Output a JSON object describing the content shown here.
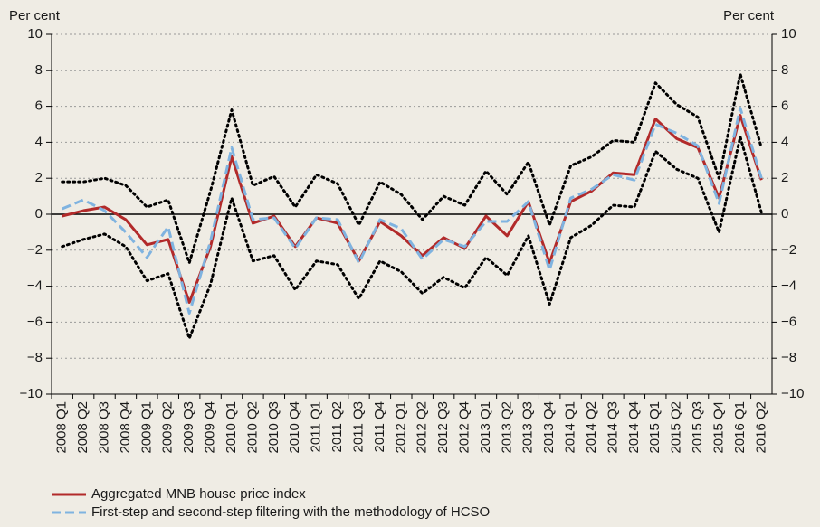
{
  "chart_data": {
    "type": "line",
    "y_label": "Per cent",
    "y2_label": "Per cent",
    "categories": [
      "2008 Q1",
      "2008 Q2",
      "2008 Q3",
      "2008 Q4",
      "2009 Q1",
      "2009 Q2",
      "2009 Q3",
      "2009 Q4",
      "2010 Q1",
      "2010 Q2",
      "2010 Q3",
      "2010 Q4",
      "2011 Q1",
      "2011 Q2",
      "2011 Q3",
      "2011 Q4",
      "2012 Q1",
      "2012 Q2",
      "2012 Q3",
      "2012 Q4",
      "2013 Q1",
      "2013 Q2",
      "2013 Q3",
      "2013 Q4",
      "2014 Q1",
      "2014 Q2",
      "2014 Q3",
      "2014 Q4",
      "2015 Q1",
      "2015 Q2",
      "2015 Q3",
      "2015 Q4",
      "2016 Q1",
      "2016 Q2"
    ],
    "series": [
      {
        "color": "#000000",
        "style": "dotted",
        "values": [
          1.8,
          1.8,
          2.0,
          1.6,
          0.4,
          0.8,
          -2.7,
          1.3,
          5.8,
          1.6,
          2.1,
          0.4,
          2.2,
          1.7,
          -0.6,
          1.8,
          1.1,
          -0.3,
          1.0,
          0.5,
          2.4,
          1.1,
          2.9,
          -0.6,
          2.7,
          3.2,
          4.1,
          4.0,
          7.3,
          6.1,
          5.4,
          2.0,
          7.8,
          3.7
        ]
      },
      {
        "color": "#000000",
        "style": "dotted",
        "values": [
          -1.8,
          -1.4,
          -1.1,
          -1.8,
          -3.7,
          -3.3,
          -6.9,
          -3.9,
          0.9,
          -2.6,
          -2.3,
          -4.2,
          -2.6,
          -2.8,
          -4.7,
          -2.6,
          -3.2,
          -4.4,
          -3.5,
          -4.1,
          -2.4,
          -3.4,
          -1.2,
          -5.0,
          -1.3,
          -0.6,
          0.5,
          0.4,
          3.5,
          2.5,
          2.0,
          -1.0,
          4.3,
          0.1
        ]
      },
      {
        "name": "Aggregated MNB house price index",
        "color": "#b22a2a",
        "style": "solid",
        "values": [
          -0.1,
          0.2,
          0.4,
          -0.3,
          -1.7,
          -1.4,
          -4.9,
          -1.8,
          3.2,
          -0.5,
          -0.1,
          -1.8,
          -0.2,
          -0.5,
          -2.6,
          -0.4,
          -1.2,
          -2.3,
          -1.3,
          -1.9,
          -0.1,
          -1.2,
          0.7,
          -2.7,
          0.7,
          1.3,
          2.3,
          2.2,
          5.3,
          4.2,
          3.7,
          0.9,
          5.5,
          1.9
        ]
      },
      {
        "name": "First-step and second-step filtering with the methodology of HCSO",
        "color": "#7fb3e0",
        "style": "dashed",
        "values": [
          0.3,
          0.8,
          0.2,
          -1.0,
          -2.4,
          -0.7,
          -5.5,
          -1.5,
          3.7,
          -0.3,
          -0.2,
          -1.9,
          -0.2,
          -0.3,
          -2.7,
          -0.3,
          -0.8,
          -2.5,
          -1.4,
          -1.8,
          -0.4,
          -0.4,
          0.7,
          -3.1,
          0.9,
          1.4,
          2.2,
          1.9,
          5.0,
          4.5,
          3.8,
          0.6,
          5.9,
          2.0
        ]
      }
    ],
    "ylim": [
      -10,
      10
    ],
    "yticks": [
      {
        "value": -10,
        "label": "−10"
      },
      {
        "value": -8,
        "label": "−8"
      },
      {
        "value": -6,
        "label": "−6"
      },
      {
        "value": -4,
        "label": "−4"
      },
      {
        "value": -2,
        "label": "−2"
      },
      0,
      2,
      4,
      6,
      8,
      10
    ],
    "y2lim": [
      -10,
      10
    ],
    "y2ticks": [
      {
        "value": -10,
        "label": "−10"
      },
      {
        "value": -8,
        "label": "−8"
      },
      {
        "value": -6,
        "label": "−6"
      },
      {
        "value": -4,
        "label": "−4"
      },
      {
        "value": -2,
        "label": "−2"
      },
      0,
      2,
      4,
      6,
      8,
      10
    ],
    "grid": true,
    "legend": "bottom"
  }
}
